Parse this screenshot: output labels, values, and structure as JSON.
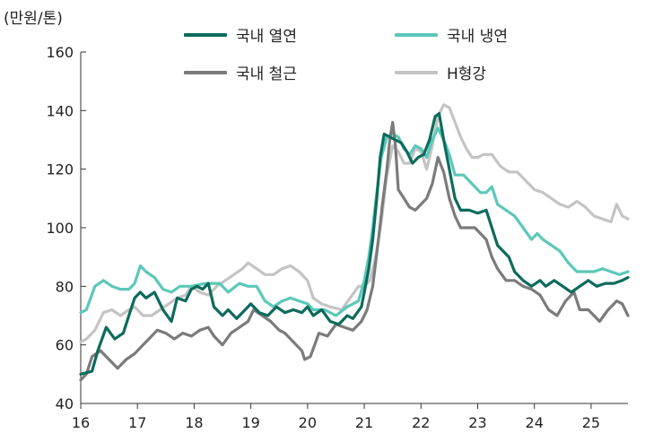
{
  "chart_data": {
    "type": "line",
    "ylabel": "(만원/톤)",
    "ylim": [
      40,
      160
    ],
    "yticks": [
      40,
      60,
      80,
      100,
      120,
      140,
      160
    ],
    "xlim": [
      16,
      25.65
    ],
    "xticks": [
      16,
      17,
      18,
      19,
      20,
      21,
      22,
      23,
      24,
      25
    ],
    "xtick_labels": [
      "16",
      "17",
      "18",
      "19",
      "20",
      "21",
      "22",
      "23",
      "24",
      "25"
    ],
    "grid": false,
    "legend_position": "top",
    "series": [
      {
        "name": "국내 열연",
        "color": "#0d6b5c",
        "points": [
          [
            16.0,
            50
          ],
          [
            16.2,
            51
          ],
          [
            16.3,
            58
          ],
          [
            16.45,
            66
          ],
          [
            16.6,
            62
          ],
          [
            16.75,
            64
          ],
          [
            16.85,
            70
          ],
          [
            16.95,
            76
          ],
          [
            17.05,
            78
          ],
          [
            17.15,
            76
          ],
          [
            17.3,
            78
          ],
          [
            17.45,
            72
          ],
          [
            17.6,
            68
          ],
          [
            17.7,
            76
          ],
          [
            17.85,
            75
          ],
          [
            17.95,
            79
          ],
          [
            18.05,
            80
          ],
          [
            18.15,
            79
          ],
          [
            18.25,
            81
          ],
          [
            18.35,
            73
          ],
          [
            18.5,
            70
          ],
          [
            18.6,
            72
          ],
          [
            18.75,
            69
          ],
          [
            18.9,
            72
          ],
          [
            19.0,
            74
          ],
          [
            19.15,
            71
          ],
          [
            19.3,
            70
          ],
          [
            19.45,
            73
          ],
          [
            19.6,
            71
          ],
          [
            19.75,
            72
          ],
          [
            19.9,
            71
          ],
          [
            20.0,
            73
          ],
          [
            20.1,
            70
          ],
          [
            20.25,
            72
          ],
          [
            20.4,
            68
          ],
          [
            20.55,
            67
          ],
          [
            20.7,
            70
          ],
          [
            20.8,
            69
          ],
          [
            20.95,
            73
          ],
          [
            21.0,
            78
          ],
          [
            21.08,
            86
          ],
          [
            21.15,
            96
          ],
          [
            21.22,
            110
          ],
          [
            21.28,
            124
          ],
          [
            21.35,
            132
          ],
          [
            21.45,
            131
          ],
          [
            21.55,
            130
          ],
          [
            21.65,
            129
          ],
          [
            21.75,
            126
          ],
          [
            21.85,
            122
          ],
          [
            21.95,
            124
          ],
          [
            22.05,
            125
          ],
          [
            22.15,
            130
          ],
          [
            22.25,
            138
          ],
          [
            22.32,
            139
          ],
          [
            22.4,
            130
          ],
          [
            22.5,
            120
          ],
          [
            22.6,
            110
          ],
          [
            22.7,
            106
          ],
          [
            22.85,
            106
          ],
          [
            23.0,
            105
          ],
          [
            23.15,
            106
          ],
          [
            23.25,
            100
          ],
          [
            23.35,
            94
          ],
          [
            23.45,
            92
          ],
          [
            23.55,
            90
          ],
          [
            23.65,
            85
          ],
          [
            23.8,
            82
          ],
          [
            23.95,
            80
          ],
          [
            24.1,
            82
          ],
          [
            24.2,
            80
          ],
          [
            24.35,
            82
          ],
          [
            24.5,
            80
          ],
          [
            24.65,
            78
          ],
          [
            24.8,
            80
          ],
          [
            24.95,
            82
          ],
          [
            25.1,
            80
          ],
          [
            25.25,
            81
          ],
          [
            25.4,
            81
          ],
          [
            25.55,
            82
          ],
          [
            25.65,
            83
          ]
        ]
      },
      {
        "name": "국내 냉연",
        "color": "#5cc8b8",
        "points": [
          [
            16.0,
            71
          ],
          [
            16.1,
            72
          ],
          [
            16.25,
            80
          ],
          [
            16.4,
            82
          ],
          [
            16.55,
            80
          ],
          [
            16.7,
            79
          ],
          [
            16.85,
            79
          ],
          [
            16.95,
            81
          ],
          [
            17.05,
            87
          ],
          [
            17.15,
            85
          ],
          [
            17.3,
            83
          ],
          [
            17.45,
            79
          ],
          [
            17.6,
            78
          ],
          [
            17.75,
            80
          ],
          [
            17.95,
            80
          ],
          [
            18.2,
            81
          ],
          [
            18.45,
            81
          ],
          [
            18.6,
            78
          ],
          [
            18.8,
            81
          ],
          [
            18.95,
            80
          ],
          [
            19.1,
            80
          ],
          [
            19.25,
            75
          ],
          [
            19.4,
            73
          ],
          [
            19.55,
            75
          ],
          [
            19.7,
            76
          ],
          [
            19.85,
            75
          ],
          [
            20.0,
            74
          ],
          [
            20.1,
            72
          ],
          [
            20.3,
            72
          ],
          [
            20.5,
            70
          ],
          [
            20.7,
            73
          ],
          [
            20.9,
            75
          ],
          [
            21.0,
            82
          ],
          [
            21.08,
            90
          ],
          [
            21.15,
            100
          ],
          [
            21.22,
            112
          ],
          [
            21.3,
            124
          ],
          [
            21.4,
            131
          ],
          [
            21.5,
            132
          ],
          [
            21.6,
            131
          ],
          [
            21.7,
            127
          ],
          [
            21.8,
            125
          ],
          [
            21.9,
            128
          ],
          [
            22.0,
            127
          ],
          [
            22.1,
            124
          ],
          [
            22.2,
            130
          ],
          [
            22.3,
            134
          ],
          [
            22.4,
            130
          ],
          [
            22.5,
            125
          ],
          [
            22.6,
            118
          ],
          [
            22.75,
            118
          ],
          [
            22.9,
            115
          ],
          [
            23.05,
            112
          ],
          [
            23.15,
            112
          ],
          [
            23.25,
            114
          ],
          [
            23.35,
            108
          ],
          [
            23.5,
            106
          ],
          [
            23.65,
            104
          ],
          [
            23.8,
            100
          ],
          [
            23.95,
            96
          ],
          [
            24.05,
            98
          ],
          [
            24.15,
            96
          ],
          [
            24.3,
            94
          ],
          [
            24.45,
            92
          ],
          [
            24.6,
            88
          ],
          [
            24.75,
            85
          ],
          [
            24.9,
            85
          ],
          [
            25.05,
            85
          ],
          [
            25.2,
            86
          ],
          [
            25.35,
            85
          ],
          [
            25.5,
            84
          ],
          [
            25.65,
            85
          ]
        ]
      },
      {
        "name": "국내 철근",
        "color": "#7b7b7b",
        "points": [
          [
            16.0,
            48
          ],
          [
            16.1,
            50
          ],
          [
            16.2,
            56
          ],
          [
            16.35,
            58
          ],
          [
            16.5,
            55
          ],
          [
            16.65,
            52
          ],
          [
            16.8,
            55
          ],
          [
            16.95,
            57
          ],
          [
            17.1,
            60
          ],
          [
            17.2,
            62
          ],
          [
            17.35,
            65
          ],
          [
            17.5,
            64
          ],
          [
            17.65,
            62
          ],
          [
            17.8,
            64
          ],
          [
            17.95,
            63
          ],
          [
            18.1,
            65
          ],
          [
            18.25,
            66
          ],
          [
            18.35,
            63
          ],
          [
            18.5,
            60
          ],
          [
            18.65,
            64
          ],
          [
            18.8,
            66
          ],
          [
            18.95,
            68
          ],
          [
            19.05,
            72
          ],
          [
            19.2,
            70
          ],
          [
            19.35,
            68
          ],
          [
            19.5,
            65
          ],
          [
            19.6,
            64
          ],
          [
            19.7,
            62
          ],
          [
            19.8,
            60
          ],
          [
            19.9,
            58
          ],
          [
            19.95,
            55
          ],
          [
            20.05,
            56
          ],
          [
            20.2,
            64
          ],
          [
            20.35,
            63
          ],
          [
            20.5,
            67
          ],
          [
            20.65,
            66
          ],
          [
            20.8,
            65
          ],
          [
            20.95,
            68
          ],
          [
            21.05,
            72
          ],
          [
            21.15,
            80
          ],
          [
            21.25,
            96
          ],
          [
            21.32,
            108
          ],
          [
            21.4,
            120
          ],
          [
            21.45,
            130
          ],
          [
            21.5,
            136
          ],
          [
            21.55,
            128
          ],
          [
            21.6,
            113
          ],
          [
            21.7,
            110
          ],
          [
            21.8,
            107
          ],
          [
            21.9,
            106
          ],
          [
            22.0,
            108
          ],
          [
            22.1,
            110
          ],
          [
            22.2,
            115
          ],
          [
            22.3,
            124
          ],
          [
            22.4,
            119
          ],
          [
            22.5,
            110
          ],
          [
            22.6,
            104
          ],
          [
            22.7,
            100
          ],
          [
            22.8,
            100
          ],
          [
            22.95,
            100
          ],
          [
            23.05,
            98
          ],
          [
            23.15,
            96
          ],
          [
            23.25,
            90
          ],
          [
            23.35,
            86
          ],
          [
            23.5,
            82
          ],
          [
            23.65,
            82
          ],
          [
            23.8,
            80
          ],
          [
            23.95,
            79
          ],
          [
            24.1,
            77
          ],
          [
            24.25,
            72
          ],
          [
            24.4,
            70
          ],
          [
            24.55,
            75
          ],
          [
            24.7,
            78
          ],
          [
            24.8,
            72
          ],
          [
            24.95,
            72
          ],
          [
            25.05,
            70
          ],
          [
            25.15,
            68
          ],
          [
            25.3,
            72
          ],
          [
            25.45,
            75
          ],
          [
            25.55,
            74
          ],
          [
            25.65,
            70
          ]
        ]
      },
      {
        "name": "H형강",
        "color": "#c4c4c4",
        "points": [
          [
            16.0,
            61
          ],
          [
            16.1,
            62
          ],
          [
            16.25,
            65
          ],
          [
            16.4,
            71
          ],
          [
            16.55,
            72
          ],
          [
            16.7,
            70
          ],
          [
            16.85,
            72
          ],
          [
            16.95,
            73
          ],
          [
            17.1,
            70
          ],
          [
            17.25,
            70
          ],
          [
            17.4,
            72
          ],
          [
            17.55,
            74
          ],
          [
            17.7,
            76
          ],
          [
            17.85,
            77
          ],
          [
            17.95,
            80
          ],
          [
            18.1,
            78
          ],
          [
            18.25,
            77
          ],
          [
            18.4,
            80
          ],
          [
            18.55,
            82
          ],
          [
            18.7,
            84
          ],
          [
            18.85,
            86
          ],
          [
            18.95,
            88
          ],
          [
            19.1,
            86
          ],
          [
            19.25,
            84
          ],
          [
            19.4,
            84
          ],
          [
            19.55,
            86
          ],
          [
            19.7,
            87
          ],
          [
            19.85,
            85
          ],
          [
            20.0,
            82
          ],
          [
            20.1,
            76
          ],
          [
            20.25,
            74
          ],
          [
            20.4,
            73
          ],
          [
            20.6,
            72
          ],
          [
            20.75,
            76
          ],
          [
            20.9,
            80
          ],
          [
            21.0,
            80
          ],
          [
            21.1,
            82
          ],
          [
            21.2,
            90
          ],
          [
            21.3,
            102
          ],
          [
            21.4,
            118
          ],
          [
            21.5,
            128
          ],
          [
            21.6,
            126
          ],
          [
            21.7,
            122
          ],
          [
            21.8,
            122
          ],
          [
            21.9,
            127
          ],
          [
            22.0,
            126
          ],
          [
            22.1,
            120
          ],
          [
            22.2,
            128
          ],
          [
            22.3,
            138
          ],
          [
            22.4,
            142
          ],
          [
            22.5,
            141
          ],
          [
            22.6,
            136
          ],
          [
            22.7,
            131
          ],
          [
            22.8,
            127
          ],
          [
            22.9,
            124
          ],
          [
            23.0,
            124
          ],
          [
            23.1,
            125
          ],
          [
            23.25,
            125
          ],
          [
            23.4,
            121
          ],
          [
            23.55,
            119
          ],
          [
            23.7,
            119
          ],
          [
            23.85,
            116
          ],
          [
            24.0,
            113
          ],
          [
            24.15,
            112
          ],
          [
            24.3,
            110
          ],
          [
            24.45,
            108
          ],
          [
            24.6,
            107
          ],
          [
            24.75,
            109
          ],
          [
            24.9,
            107
          ],
          [
            25.05,
            104
          ],
          [
            25.2,
            103
          ],
          [
            25.35,
            102
          ],
          [
            25.45,
            108
          ],
          [
            25.55,
            104
          ],
          [
            25.65,
            103
          ]
        ]
      }
    ]
  }
}
